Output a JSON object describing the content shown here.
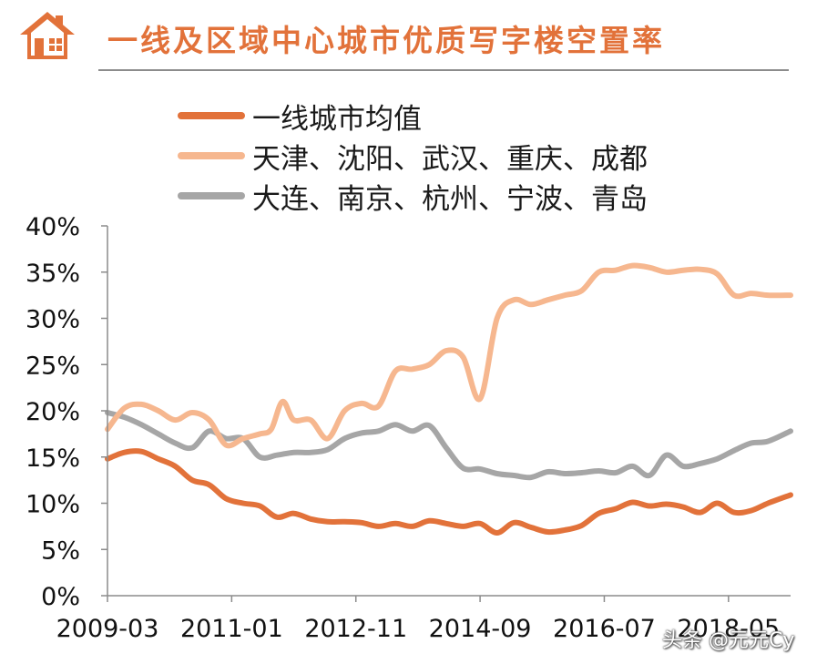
{
  "header": {
    "title": "一线及区域中心城市优质写字楼空置率",
    "icon": "house-icon",
    "accent_color": "#e2723a"
  },
  "watermark": "头条 @元元Cy",
  "chart_data": {
    "type": "line",
    "title": "",
    "xlabel": "",
    "ylabel": "",
    "ylim": [
      0,
      40
    ],
    "yticks": [
      "0%",
      "5%",
      "10%",
      "15%",
      "20%",
      "25%",
      "30%",
      "35%",
      "40%"
    ],
    "xlim": [
      "2009-03",
      "2019-04"
    ],
    "xticks": [
      "2009-03",
      "2011-01",
      "2012-11",
      "2014-09",
      "2016-07",
      "2018-05"
    ],
    "grid": false,
    "legend_position": "top-left",
    "series": [
      {
        "name": "一线城市均值",
        "color": "#e2723a",
        "points": [
          [
            "2009-03",
            14.8
          ],
          [
            "2009-06",
            15.5
          ],
          [
            "2009-09",
            15.6
          ],
          [
            "2009-12",
            14.8
          ],
          [
            "2010-03",
            14.0
          ],
          [
            "2010-06",
            12.5
          ],
          [
            "2010-09",
            12.0
          ],
          [
            "2010-12",
            10.5
          ],
          [
            "2011-03",
            10.0
          ],
          [
            "2011-06",
            9.7
          ],
          [
            "2011-09",
            8.5
          ],
          [
            "2011-12",
            8.9
          ],
          [
            "2012-03",
            8.3
          ],
          [
            "2012-06",
            8.0
          ],
          [
            "2012-09",
            8.0
          ],
          [
            "2012-12",
            7.9
          ],
          [
            "2013-03",
            7.5
          ],
          [
            "2013-06",
            7.8
          ],
          [
            "2013-09",
            7.5
          ],
          [
            "2013-12",
            8.1
          ],
          [
            "2014-03",
            7.8
          ],
          [
            "2014-06",
            7.5
          ],
          [
            "2014-09",
            7.8
          ],
          [
            "2014-12",
            6.8
          ],
          [
            "2015-03",
            7.9
          ],
          [
            "2015-06",
            7.4
          ],
          [
            "2015-09",
            6.9
          ],
          [
            "2015-12",
            7.1
          ],
          [
            "2016-03",
            7.6
          ],
          [
            "2016-06",
            8.9
          ],
          [
            "2016-09",
            9.4
          ],
          [
            "2016-12",
            10.1
          ],
          [
            "2017-03",
            9.7
          ],
          [
            "2017-06",
            9.9
          ],
          [
            "2017-09",
            9.6
          ],
          [
            "2017-12",
            9.0
          ],
          [
            "2018-03",
            10.0
          ],
          [
            "2018-06",
            9.0
          ],
          [
            "2018-09",
            9.2
          ],
          [
            "2018-12",
            10.0
          ],
          [
            "2019-04",
            10.9
          ]
        ]
      },
      {
        "name": "天津、沈阳、武汉、重庆、成都",
        "color": "#f6b78f",
        "points": [
          [
            "2009-03",
            18.0
          ],
          [
            "2009-06",
            20.3
          ],
          [
            "2009-09",
            20.7
          ],
          [
            "2009-12",
            20.0
          ],
          [
            "2010-03",
            19.0
          ],
          [
            "2010-06",
            19.8
          ],
          [
            "2010-09",
            19.0
          ],
          [
            "2010-12",
            16.3
          ],
          [
            "2011-03",
            17.0
          ],
          [
            "2011-06",
            17.5
          ],
          [
            "2011-08",
            18.0
          ],
          [
            "2011-10",
            21.0
          ],
          [
            "2011-12",
            19.0
          ],
          [
            "2012-03",
            19.0
          ],
          [
            "2012-06",
            17.0
          ],
          [
            "2012-09",
            20.0
          ],
          [
            "2012-12",
            20.8
          ],
          [
            "2013-03",
            20.5
          ],
          [
            "2013-06",
            24.3
          ],
          [
            "2013-09",
            24.5
          ],
          [
            "2013-12",
            25.0
          ],
          [
            "2014-03",
            26.5
          ],
          [
            "2014-06",
            25.8
          ],
          [
            "2014-09",
            21.3
          ],
          [
            "2014-12",
            30.0
          ],
          [
            "2015-03",
            32.0
          ],
          [
            "2015-06",
            31.5
          ],
          [
            "2015-09",
            32.0
          ],
          [
            "2015-12",
            32.5
          ],
          [
            "2016-03",
            33.0
          ],
          [
            "2016-06",
            35.0
          ],
          [
            "2016-09",
            35.2
          ],
          [
            "2016-12",
            35.7
          ],
          [
            "2017-03",
            35.5
          ],
          [
            "2017-06",
            35.0
          ],
          [
            "2017-09",
            35.2
          ],
          [
            "2017-12",
            35.3
          ],
          [
            "2018-03",
            34.8
          ],
          [
            "2018-06",
            32.5
          ],
          [
            "2018-09",
            32.7
          ],
          [
            "2018-12",
            32.5
          ],
          [
            "2019-04",
            32.5
          ]
        ]
      },
      {
        "name": "大连、南京、杭州、宁波、青岛",
        "color": "#a6a6a6",
        "points": [
          [
            "2009-03",
            19.8
          ],
          [
            "2009-06",
            19.3
          ],
          [
            "2009-09",
            18.5
          ],
          [
            "2009-12",
            17.5
          ],
          [
            "2010-03",
            16.5
          ],
          [
            "2010-06",
            16.0
          ],
          [
            "2010-09",
            17.8
          ],
          [
            "2010-12",
            17.0
          ],
          [
            "2011-03",
            17.0
          ],
          [
            "2011-06",
            15.0
          ],
          [
            "2011-09",
            15.2
          ],
          [
            "2011-12",
            15.5
          ],
          [
            "2012-03",
            15.5
          ],
          [
            "2012-06",
            15.8
          ],
          [
            "2012-09",
            17.0
          ],
          [
            "2012-12",
            17.6
          ],
          [
            "2013-03",
            17.8
          ],
          [
            "2013-06",
            18.5
          ],
          [
            "2013-09",
            17.8
          ],
          [
            "2013-12",
            18.4
          ],
          [
            "2014-03",
            16.0
          ],
          [
            "2014-06",
            13.8
          ],
          [
            "2014-09",
            13.7
          ],
          [
            "2014-12",
            13.2
          ],
          [
            "2015-03",
            13.0
          ],
          [
            "2015-06",
            12.8
          ],
          [
            "2015-09",
            13.4
          ],
          [
            "2015-12",
            13.2
          ],
          [
            "2016-03",
            13.3
          ],
          [
            "2016-06",
            13.5
          ],
          [
            "2016-09",
            13.3
          ],
          [
            "2016-12",
            14.0
          ],
          [
            "2017-03",
            13.0
          ],
          [
            "2017-06",
            15.2
          ],
          [
            "2017-09",
            14.0
          ],
          [
            "2017-12",
            14.3
          ],
          [
            "2018-03",
            14.8
          ],
          [
            "2018-06",
            15.7
          ],
          [
            "2018-09",
            16.5
          ],
          [
            "2018-12",
            16.7
          ],
          [
            "2019-04",
            17.8
          ]
        ]
      }
    ]
  }
}
